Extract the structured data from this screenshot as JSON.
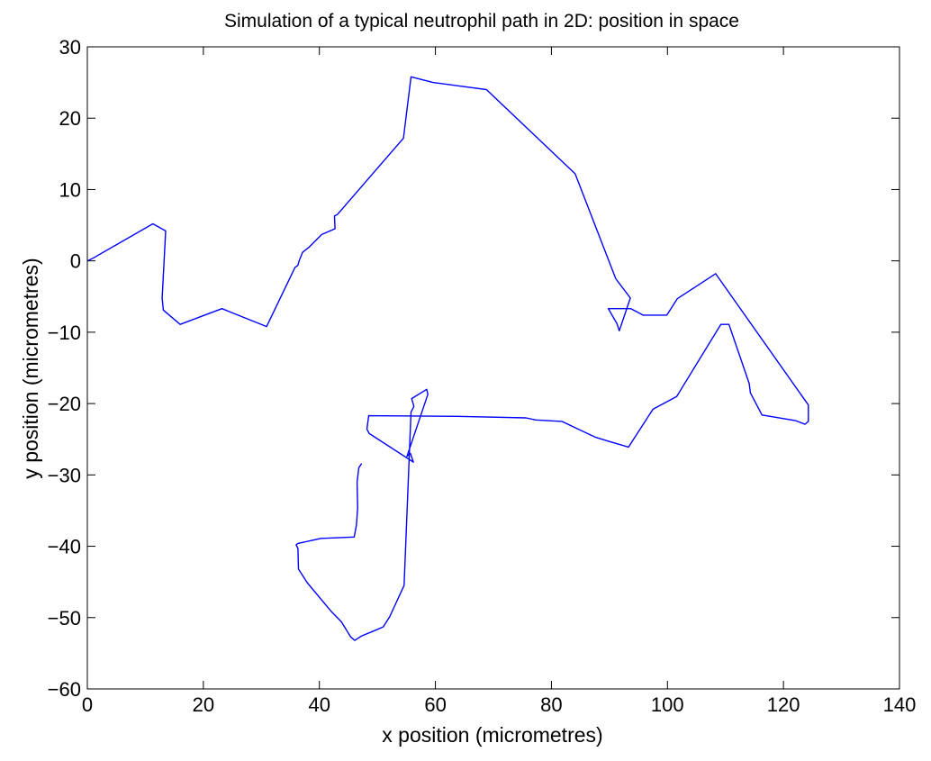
{
  "chart_data": {
    "type": "line",
    "title": "Simulation of a typical neutrophil path in 2D: position in space",
    "xlabel": "x position (micrometres)",
    "ylabel": "y position (micrometres)",
    "xlim": [
      0,
      140
    ],
    "ylim": [
      -60,
      30
    ],
    "xticks": [
      0,
      20,
      40,
      60,
      80,
      100,
      120,
      140
    ],
    "yticks": [
      -60,
      -50,
      -40,
      -30,
      -20,
      -10,
      0,
      10,
      20,
      30
    ],
    "xtick_labels": [
      "0",
      "20",
      "40",
      "60",
      "80",
      "100",
      "120",
      "140"
    ],
    "ytick_labels": [
      "−60",
      "−50",
      "−40",
      "−30",
      "−20",
      "−10",
      "0",
      "10",
      "20",
      "30"
    ],
    "grid": false,
    "line_color": "#0000ff",
    "series": [
      {
        "x": [
          0,
          0.8,
          11.3,
          13.5,
          12.9,
          13.1,
          16.0,
          23.2,
          30.9,
          35.8,
          36.2,
          36.3,
          36.5,
          37.1,
          38.2,
          40.4,
          42.7,
          42.6,
          43.1,
          54.5,
          55.8,
          59.6,
          68.8,
          84.1,
          91.1,
          93.6,
          91.7,
          91.3,
          89.8,
          93.7,
          95.8,
          97.9,
          99.9,
          101.7,
          108.3,
          124.3,
          124.3,
          123.7,
          122.1,
          116.3,
          114.3,
          114.1,
          110.6,
          109.2,
          101.6,
          97.5,
          93.3,
          89.9,
          87.5,
          81.8,
          77.3,
          75.6,
          64.7,
          48.5,
          48.2,
          48.6,
          56.2,
          55.7,
          55.1,
          58.7,
          58.5,
          55.9,
          56.3,
          55.8,
          54.6,
          52.1,
          51.0,
          49.3,
          47.2,
          46.1,
          45.4,
          43.8,
          42.0,
          37.9,
          36.4,
          36.3,
          36.0,
          36.3,
          40.3,
          46.0,
          46.4,
          46.6,
          46.5,
          46.8,
          47.3
        ],
        "y": [
          0,
          0.3,
          5.2,
          4.2,
          -5.2,
          -6.9,
          -8.9,
          -6.7,
          -9.2,
          -0.9,
          -0.7,
          -0.6,
          0.0,
          1.2,
          1.9,
          3.7,
          4.5,
          6.3,
          6.5,
          17.2,
          25.8,
          25.0,
          24.0,
          12.2,
          -2.5,
          -5.2,
          -9.8,
          -8.8,
          -6.7,
          -6.7,
          -7.6,
          -7.6,
          -7.6,
          -5.3,
          -1.8,
          -20.2,
          -22.5,
          -22.9,
          -22.4,
          -21.6,
          -18.5,
          -17.2,
          -8.9,
          -8.9,
          -19.0,
          -20.8,
          -26.1,
          -25.3,
          -24.7,
          -22.5,
          -22.3,
          -22.0,
          -21.8,
          -21.7,
          -23.6,
          -24.2,
          -28.2,
          -27.0,
          -27.4,
          -18.7,
          -18.0,
          -19.3,
          -20.4,
          -21.2,
          -45.5,
          -49.9,
          -51.3,
          -51.9,
          -52.6,
          -53.2,
          -52.7,
          -50.6,
          -49.1,
          -45.1,
          -43.2,
          -40.3,
          -39.8,
          -39.6,
          -38.9,
          -38.7,
          -37.0,
          -34.6,
          -31.0,
          -29.0,
          -28.4
        ]
      }
    ]
  }
}
